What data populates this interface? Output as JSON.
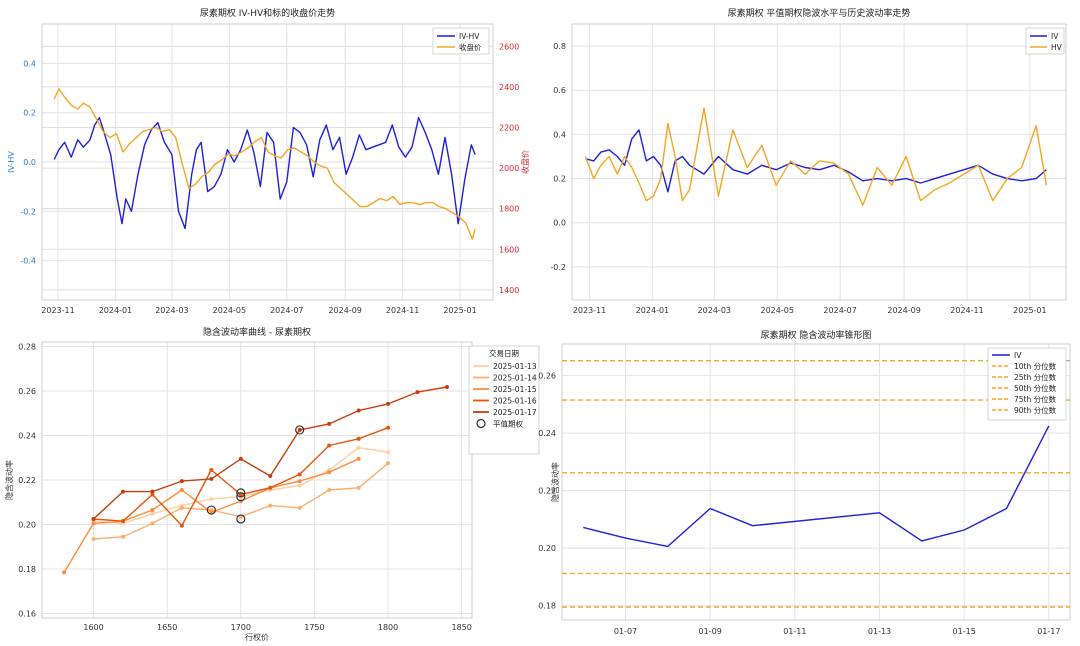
{
  "chart_data": [
    {
      "type": "line",
      "title": "尿素期权 IV-HV和标的收盘价走势",
      "ylabel_left": "IV-HV",
      "ylabel_right": "收盘价",
      "x_ticks": [
        "2023-11",
        "2024-01",
        "2024-03",
        "2024-05",
        "2024-07",
        "2024-09",
        "2024-11",
        "2025-01"
      ],
      "y_left_ticks": [
        "0.4",
        "0.2",
        "0.0",
        "-0.2",
        "-0.4"
      ],
      "y_right_ticks": [
        "2600",
        "2400",
        "2200",
        "2000",
        "1800",
        "1600",
        "1400"
      ],
      "ylim_left": [
        -0.56,
        0.56
      ],
      "ylim_right": [
        1350,
        2710
      ],
      "xlim": [
        "2023-10-15",
        "2025-02-05"
      ],
      "grid": true,
      "legend": "top-right",
      "series": [
        {
          "name": "IV-HV",
          "color": "#1f1fdd",
          "axis": "left",
          "dates": [
            "2023-10-28",
            "2023-11-02",
            "2023-11-08",
            "2023-11-15",
            "2023-11-22",
            "2023-11-28",
            "2023-12-05",
            "2023-12-10",
            "2023-12-15",
            "2023-12-20",
            "2023-12-27",
            "2024-01-03",
            "2024-01-08",
            "2024-01-12",
            "2024-01-18",
            "2024-01-25",
            "2024-02-01",
            "2024-02-08",
            "2024-02-15",
            "2024-02-22",
            "2024-03-01",
            "2024-03-08",
            "2024-03-15",
            "2024-03-22",
            "2024-03-27",
            "2024-04-01",
            "2024-04-08",
            "2024-04-15",
            "2024-04-22",
            "2024-04-29",
            "2024-05-06",
            "2024-05-13",
            "2024-05-20",
            "2024-05-27",
            "2024-06-03",
            "2024-06-10",
            "2024-06-17",
            "2024-06-24",
            "2024-07-01",
            "2024-07-08",
            "2024-07-15",
            "2024-07-22",
            "2024-07-29",
            "2024-08-05",
            "2024-08-12",
            "2024-08-19",
            "2024-08-26",
            "2024-09-02",
            "2024-09-09",
            "2024-09-16",
            "2024-09-23",
            "2024-09-30",
            "2024-10-07",
            "2024-10-14",
            "2024-10-21",
            "2024-10-28",
            "2024-11-04",
            "2024-11-11",
            "2024-11-18",
            "2024-11-25",
            "2024-12-02",
            "2024-12-09",
            "2024-12-16",
            "2024-12-23",
            "2024-12-30",
            "2025-01-06",
            "2025-01-13",
            "2025-01-17"
          ],
          "values": [
            0.01,
            0.05,
            0.08,
            0.02,
            0.09,
            0.06,
            0.09,
            0.15,
            0.18,
            0.12,
            0.03,
            -0.15,
            -0.25,
            -0.15,
            -0.2,
            -0.05,
            0.07,
            0.13,
            0.16,
            0.08,
            0.03,
            -0.2,
            -0.27,
            -0.05,
            0.05,
            0.08,
            -0.12,
            -0.1,
            -0.05,
            0.05,
            0.0,
            0.05,
            0.13,
            0.04,
            -0.1,
            0.12,
            0.08,
            -0.15,
            -0.08,
            0.14,
            0.12,
            0.07,
            -0.06,
            0.09,
            0.15,
            0.05,
            0.1,
            -0.05,
            0.02,
            0.11,
            0.05,
            0.06,
            0.07,
            0.08,
            0.15,
            0.06,
            0.02,
            0.06,
            0.18,
            0.12,
            0.05,
            -0.05,
            0.1,
            -0.05,
            -0.25,
            -0.07,
            0.07,
            0.03
          ]
        },
        {
          "name": "收盘价",
          "color": "#f5a623",
          "axis": "right",
          "dates": [
            "2023-10-28",
            "2023-11-02",
            "2023-11-08",
            "2023-11-15",
            "2023-11-22",
            "2023-11-28",
            "2023-12-05",
            "2023-12-12",
            "2023-12-19",
            "2023-12-26",
            "2024-01-02",
            "2024-01-09",
            "2024-01-16",
            "2024-01-23",
            "2024-01-30",
            "2024-02-06",
            "2024-02-13",
            "2024-02-20",
            "2024-02-27",
            "2024-03-05",
            "2024-03-12",
            "2024-03-19",
            "2024-03-26",
            "2024-04-02",
            "2024-04-09",
            "2024-04-16",
            "2024-04-23",
            "2024-04-30",
            "2024-05-07",
            "2024-05-14",
            "2024-05-21",
            "2024-05-28",
            "2024-06-04",
            "2024-06-11",
            "2024-06-18",
            "2024-06-25",
            "2024-07-02",
            "2024-07-09",
            "2024-07-16",
            "2024-07-23",
            "2024-07-30",
            "2024-08-06",
            "2024-08-13",
            "2024-08-20",
            "2024-08-27",
            "2024-09-03",
            "2024-09-10",
            "2024-09-17",
            "2024-09-24",
            "2024-10-01",
            "2024-10-08",
            "2024-10-15",
            "2024-10-22",
            "2024-10-29",
            "2024-11-05",
            "2024-11-12",
            "2024-11-19",
            "2024-11-26",
            "2024-12-03",
            "2024-12-10",
            "2024-12-17",
            "2024-12-24",
            "2024-12-31",
            "2025-01-07",
            "2025-01-14",
            "2025-01-17"
          ],
          "values": [
            2340,
            2390,
            2350,
            2310,
            2290,
            2320,
            2300,
            2240,
            2180,
            2150,
            2170,
            2080,
            2120,
            2150,
            2180,
            2190,
            2200,
            2180,
            2190,
            2150,
            2020,
            1900,
            1920,
            1960,
            1980,
            2020,
            2040,
            2070,
            2060,
            2080,
            2100,
            2130,
            2150,
            2080,
            2060,
            2050,
            2090,
            2100,
            2080,
            2060,
            2030,
            2010,
            2000,
            1930,
            1900,
            1870,
            1840,
            1810,
            1810,
            1830,
            1850,
            1840,
            1860,
            1820,
            1830,
            1830,
            1820,
            1830,
            1830,
            1810,
            1800,
            1780,
            1760,
            1730,
            1650,
            1700
          ]
        }
      ]
    },
    {
      "type": "line",
      "title": "尿素期权 平值期权隐波水平与历史波动率走势",
      "x_ticks": [
        "2023-11",
        "2024-01",
        "2024-03",
        "2024-05",
        "2024-07",
        "2024-09",
        "2024-11",
        "2025-01"
      ],
      "y_ticks": [
        "0.8",
        "0.6",
        "0.4",
        "0.2",
        "0.0",
        "-0.2"
      ],
      "ylim": [
        -0.35,
        0.9
      ],
      "xlim": [
        "2023-10-15",
        "2025-02-05"
      ],
      "grid": true,
      "legend": "top-right",
      "series": [
        {
          "name": "IV",
          "color": "#1f1fdd",
          "dates": [
            "2023-10-28",
            "2023-11-05",
            "2023-11-12",
            "2023-11-20",
            "2023-11-28",
            "2023-12-05",
            "2023-12-12",
            "2023-12-19",
            "2023-12-26",
            "2024-01-02",
            "2024-01-09",
            "2024-01-16",
            "2024-01-23",
            "2024-01-30",
            "2024-02-06",
            "2024-02-20",
            "2024-03-05",
            "2024-03-19",
            "2024-04-02",
            "2024-04-16",
            "2024-04-30",
            "2024-05-14",
            "2024-05-28",
            "2024-06-11",
            "2024-06-25",
            "2024-07-09",
            "2024-07-23",
            "2024-08-06",
            "2024-08-20",
            "2024-09-03",
            "2024-09-17",
            "2024-10-01",
            "2024-10-15",
            "2024-10-29",
            "2024-11-12",
            "2024-11-26",
            "2024-12-10",
            "2024-12-24",
            "2025-01-07",
            "2025-01-17"
          ],
          "values": [
            0.29,
            0.28,
            0.32,
            0.33,
            0.3,
            0.26,
            0.38,
            0.42,
            0.28,
            0.3,
            0.26,
            0.14,
            0.28,
            0.3,
            0.26,
            0.22,
            0.3,
            0.24,
            0.22,
            0.26,
            0.24,
            0.27,
            0.25,
            0.24,
            0.26,
            0.23,
            0.19,
            0.2,
            0.19,
            0.2,
            0.18,
            0.2,
            0.22,
            0.24,
            0.26,
            0.22,
            0.2,
            0.19,
            0.2,
            0.24
          ]
        },
        {
          "name": "HV",
          "color": "#f5a623",
          "dates": [
            "2023-10-28",
            "2023-11-05",
            "2023-11-12",
            "2023-11-20",
            "2023-11-28",
            "2023-12-05",
            "2023-12-12",
            "2023-12-19",
            "2023-12-26",
            "2024-01-02",
            "2024-01-09",
            "2024-01-16",
            "2024-01-23",
            "2024-01-30",
            "2024-02-06",
            "2024-02-20",
            "2024-03-05",
            "2024-03-19",
            "2024-04-02",
            "2024-04-16",
            "2024-04-30",
            "2024-05-14",
            "2024-05-28",
            "2024-06-11",
            "2024-06-25",
            "2024-07-09",
            "2024-07-23",
            "2024-08-06",
            "2024-08-20",
            "2024-09-03",
            "2024-09-17",
            "2024-10-01",
            "2024-10-15",
            "2024-10-29",
            "2024-11-12",
            "2024-11-26",
            "2024-12-10",
            "2024-12-24",
            "2025-01-07",
            "2025-01-17"
          ],
          "values": [
            0.3,
            0.2,
            0.26,
            0.3,
            0.22,
            0.3,
            0.25,
            0.18,
            0.1,
            0.12,
            0.2,
            0.45,
            0.3,
            0.1,
            0.15,
            0.52,
            0.12,
            0.42,
            0.25,
            0.35,
            0.17,
            0.28,
            0.22,
            0.28,
            0.27,
            0.22,
            0.08,
            0.25,
            0.17,
            0.3,
            0.1,
            0.15,
            0.18,
            0.22,
            0.26,
            0.1,
            0.2,
            0.25,
            0.44,
            0.17
          ]
        }
      ]
    },
    {
      "type": "line",
      "title": "隐含波动率曲线 - 尿素期权",
      "xlabel": "行权价",
      "ylabel": "隐含波动率",
      "x_ticks": [
        "1600",
        "1650",
        "1700",
        "1750",
        "1800",
        "1850"
      ],
      "y_ticks": [
        "0.28",
        "0.26",
        "0.24",
        "0.22",
        "0.20",
        "0.18",
        "0.16"
      ],
      "xlim": [
        1565,
        1857
      ],
      "ylim": [
        0.158,
        0.282
      ],
      "grid": true,
      "legend_title": "交易日期",
      "legend": "top-right",
      "atm_label": "平值期权",
      "series": [
        {
          "name": "2025-01-13",
          "color": "#fdd0a2",
          "x": [
            1600,
            1620,
            1640,
            1660,
            1680,
            1700,
            1720,
            1740,
            1760,
            1780,
            1800
          ],
          "y": [
            0.2015,
            0.2005,
            0.2048,
            0.2085,
            0.2115,
            0.2125,
            0.2155,
            0.2175,
            0.2245,
            0.2345,
            0.2325
          ]
        },
        {
          "name": "2025-01-14",
          "color": "#fdae6b",
          "x": [
            1600,
            1620,
            1640,
            1660,
            1680,
            1700,
            1720,
            1740,
            1760,
            1780,
            1800
          ],
          "y": [
            0.1935,
            0.1945,
            0.2005,
            0.2075,
            0.2065,
            0.2035,
            0.2085,
            0.2075,
            0.2155,
            0.2165,
            0.2275
          ]
        },
        {
          "name": "2025-01-15",
          "color": "#fd8d3c",
          "x": [
            1580,
            1600,
            1620,
            1640,
            1660,
            1680,
            1700,
            1720,
            1740,
            1760,
            1780
          ],
          "y": [
            0.1785,
            0.2005,
            0.2015,
            0.2065,
            0.2155,
            0.2055,
            0.2105,
            0.2165,
            0.2195,
            0.2235,
            0.2295
          ]
        },
        {
          "name": "2025-01-16",
          "color": "#e6550d",
          "x": [
            1600,
            1620,
            1640,
            1660,
            1680,
            1700,
            1720,
            1740,
            1760,
            1780,
            1800
          ],
          "y": [
            0.2025,
            0.2015,
            0.2135,
            0.1995,
            0.2245,
            0.2135,
            0.2165,
            0.2225,
            0.2355,
            0.2385,
            0.2435
          ]
        },
        {
          "name": "2025-01-17",
          "color": "#c2410c",
          "x": [
            1600,
            1620,
            1640,
            1660,
            1680,
            1700,
            1720,
            1740,
            1760,
            1780,
            1800,
            1820,
            1840
          ],
          "y": [
            0.2025,
            0.2148,
            0.2148,
            0.2195,
            0.2205,
            0.2295,
            0.2218,
            0.2425,
            0.2452,
            0.2512,
            0.2542,
            0.2595,
            0.2618
          ]
        }
      ],
      "atm_points": [
        {
          "x": 1680,
          "y": 0.2065
        },
        {
          "x": 1700,
          "y": 0.2025
        },
        {
          "x": 1700,
          "y": 0.2125
        },
        {
          "x": 1700,
          "y": 0.2142
        },
        {
          "x": 1740,
          "y": 0.2425
        }
      ]
    },
    {
      "type": "line",
      "title": "尿素期权 隐含波动率锥形图",
      "ylabel": "隐含波动率",
      "x_ticks": [
        "01-07",
        "01-09",
        "01-11",
        "01-13",
        "01-15",
        "01-17"
      ],
      "y_ticks": [
        "0.26",
        "0.24",
        "0.22",
        "0.20",
        "0.18"
      ],
      "xlim": [
        "2025-01-05 12:00",
        "2025-01-17 12:00"
      ],
      "ylim": [
        0.175,
        0.271
      ],
      "grid": true,
      "legend": "top-right",
      "series": [
        {
          "name": "IV",
          "color": "#1f1fdd",
          "dates": [
            "2025-01-06",
            "2025-01-07",
            "2025-01-08",
            "2025-01-09",
            "2025-01-10",
            "2025-01-13",
            "2025-01-14",
            "2025-01-15",
            "2025-01-16",
            "2025-01-17"
          ],
          "values": [
            0.2072,
            0.2035,
            0.2006,
            0.2138,
            0.2078,
            0.2123,
            0.2025,
            0.2063,
            0.2138,
            0.2425
          ]
        }
      ],
      "percentiles": [
        {
          "name": "10th 分位数",
          "value": 0.1795
        },
        {
          "name": "25th 分位数",
          "value": 0.1912
        },
        {
          "name": "50th 分位数",
          "value": 0.2262
        },
        {
          "name": "75th 分位数",
          "value": 0.2515
        },
        {
          "name": "90th 分位数",
          "value": 0.2652
        }
      ],
      "percentile_color": "#f5a623"
    }
  ]
}
